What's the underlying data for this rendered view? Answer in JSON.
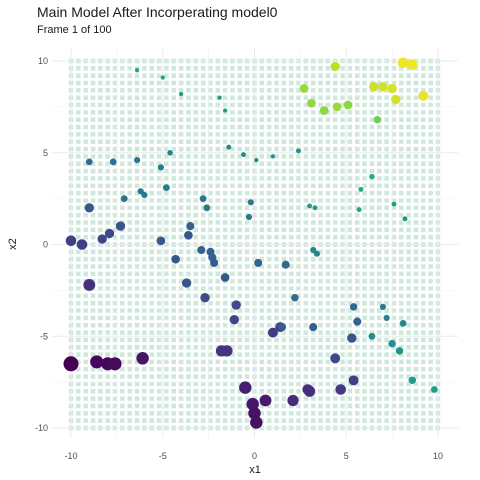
{
  "chart_data": {
    "type": "scatter",
    "title": "Main Model After Incorperating model0",
    "subtitle": "Frame 1 of 100",
    "xlabel": "x1",
    "ylabel": "x2",
    "xlim": [
      -10,
      10
    ],
    "ylim": [
      -10,
      10
    ],
    "x_ticks": [
      "-10",
      "-5",
      "0",
      "5",
      "10"
    ],
    "y_ticks": [
      "-10",
      "-5",
      "0",
      "5",
      "10"
    ],
    "grid": true,
    "background_tiles": {
      "type": "heatmap",
      "color": "#cfe8dc",
      "step": 0.4
    },
    "color_scale": "viridis",
    "points": [
      {
        "x": -10.0,
        "y": -6.5,
        "size": 1.0,
        "c": 0.0
      },
      {
        "x": -8.6,
        "y": -6.4,
        "size": 0.85,
        "c": 0.02
      },
      {
        "x": -8.0,
        "y": -6.5,
        "size": 0.85,
        "c": 0.02
      },
      {
        "x": -7.6,
        "y": -6.5,
        "size": 0.85,
        "c": 0.03
      },
      {
        "x": -6.1,
        "y": -6.2,
        "size": 0.8,
        "c": 0.06
      },
      {
        "x": -9.0,
        "y": -2.2,
        "size": 0.75,
        "c": 0.14
      },
      {
        "x": -10.0,
        "y": 0.2,
        "size": 0.65,
        "c": 0.19
      },
      {
        "x": -9.4,
        "y": 0.0,
        "size": 0.65,
        "c": 0.19
      },
      {
        "x": -8.3,
        "y": 0.3,
        "size": 0.55,
        "c": 0.21
      },
      {
        "x": -7.9,
        "y": 0.6,
        "size": 0.55,
        "c": 0.22
      },
      {
        "x": -7.3,
        "y": 1.0,
        "size": 0.55,
        "c": 0.25
      },
      {
        "x": -9.0,
        "y": 2.0,
        "size": 0.55,
        "c": 0.27
      },
      {
        "x": -9.0,
        "y": 4.5,
        "size": 0.35,
        "c": 0.35
      },
      {
        "x": -7.7,
        "y": 4.5,
        "size": 0.35,
        "c": 0.36
      },
      {
        "x": -7.1,
        "y": 2.5,
        "size": 0.35,
        "c": 0.38
      },
      {
        "x": -6.2,
        "y": 2.9,
        "size": 0.3,
        "c": 0.4
      },
      {
        "x": -6.0,
        "y": 2.7,
        "size": 0.3,
        "c": 0.41
      },
      {
        "x": -6.4,
        "y": 4.6,
        "size": 0.3,
        "c": 0.4
      },
      {
        "x": -5.1,
        "y": 4.2,
        "size": 0.3,
        "c": 0.42
      },
      {
        "x": -4.8,
        "y": 3.1,
        "size": 0.35,
        "c": 0.42
      },
      {
        "x": -4.6,
        "y": 5.0,
        "size": 0.25,
        "c": 0.45
      },
      {
        "x": -4.0,
        "y": 8.2,
        "size": 0.15,
        "c": 0.55
      },
      {
        "x": -5.0,
        "y": 9.1,
        "size": 0.15,
        "c": 0.58
      },
      {
        "x": -6.4,
        "y": 9.5,
        "size": 0.15,
        "c": 0.58
      },
      {
        "x": -2.8,
        "y": 2.5,
        "size": 0.35,
        "c": 0.4
      },
      {
        "x": -2.6,
        "y": 2.0,
        "size": 0.35,
        "c": 0.41
      },
      {
        "x": -1.4,
        "y": 5.3,
        "size": 0.2,
        "c": 0.47
      },
      {
        "x": -0.6,
        "y": 4.9,
        "size": 0.2,
        "c": 0.48
      },
      {
        "x": -1.9,
        "y": 8.0,
        "size": 0.15,
        "c": 0.55
      },
      {
        "x": -1.6,
        "y": 7.3,
        "size": 0.15,
        "c": 0.56
      },
      {
        "x": -0.2,
        "y": 2.3,
        "size": 0.3,
        "c": 0.4
      },
      {
        "x": -0.3,
        "y": 1.5,
        "size": 0.3,
        "c": 0.39
      },
      {
        "x": 1.0,
        "y": 4.8,
        "size": 0.15,
        "c": 0.48
      },
      {
        "x": 0.1,
        "y": 4.6,
        "size": 0.15,
        "c": 0.48
      },
      {
        "x": 2.4,
        "y": 5.1,
        "size": 0.2,
        "c": 0.5
      },
      {
        "x": 2.7,
        "y": 8.5,
        "size": 0.5,
        "c": 0.85
      },
      {
        "x": 3.1,
        "y": 7.7,
        "size": 0.5,
        "c": 0.84
      },
      {
        "x": 4.4,
        "y": 9.7,
        "size": 0.55,
        "c": 0.9
      },
      {
        "x": 3.8,
        "y": 7.3,
        "size": 0.5,
        "c": 0.83
      },
      {
        "x": 4.5,
        "y": 7.5,
        "size": 0.5,
        "c": 0.85
      },
      {
        "x": 5.1,
        "y": 7.6,
        "size": 0.5,
        "c": 0.83
      },
      {
        "x": 6.5,
        "y": 8.6,
        "size": 0.55,
        "c": 0.92
      },
      {
        "x": 7.0,
        "y": 8.6,
        "size": 0.55,
        "c": 0.93
      },
      {
        "x": 7.5,
        "y": 8.5,
        "size": 0.55,
        "c": 0.94
      },
      {
        "x": 7.7,
        "y": 7.9,
        "size": 0.55,
        "c": 0.93
      },
      {
        "x": 8.1,
        "y": 9.9,
        "size": 0.65,
        "c": 0.98
      },
      {
        "x": 8.6,
        "y": 9.8,
        "size": 0.65,
        "c": 0.98
      },
      {
        "x": 9.2,
        "y": 8.1,
        "size": 0.6,
        "c": 0.97
      },
      {
        "x": 6.7,
        "y": 6.8,
        "size": 0.4,
        "c": 0.78
      },
      {
        "x": 6.4,
        "y": 3.7,
        "size": 0.25,
        "c": 0.62
      },
      {
        "x": 3.0,
        "y": 2.1,
        "size": 0.2,
        "c": 0.55
      },
      {
        "x": 3.3,
        "y": 2.0,
        "size": 0.2,
        "c": 0.55
      },
      {
        "x": 5.8,
        "y": 3.0,
        "size": 0.2,
        "c": 0.6
      },
      {
        "x": 5.7,
        "y": 1.9,
        "size": 0.2,
        "c": 0.58
      },
      {
        "x": 7.6,
        "y": 2.2,
        "size": 0.2,
        "c": 0.56
      },
      {
        "x": 8.2,
        "y": 1.4,
        "size": 0.2,
        "c": 0.52
      },
      {
        "x": 3.2,
        "y": -0.3,
        "size": 0.3,
        "c": 0.47
      },
      {
        "x": 3.4,
        "y": -0.5,
        "size": 0.3,
        "c": 0.46
      },
      {
        "x": -10.0,
        "y": 0.2,
        "size": 0.6,
        "c": 0.19
      },
      {
        "x": -5.1,
        "y": 0.2,
        "size": 0.5,
        "c": 0.28
      },
      {
        "x": -4.3,
        "y": -0.8,
        "size": 0.5,
        "c": 0.27
      },
      {
        "x": -3.7,
        "y": -2.1,
        "size": 0.55,
        "c": 0.25
      },
      {
        "x": -2.9,
        "y": -0.3,
        "size": 0.45,
        "c": 0.3
      },
      {
        "x": -2.4,
        "y": -0.4,
        "size": 0.45,
        "c": 0.3
      },
      {
        "x": -2.3,
        "y": -0.7,
        "size": 0.45,
        "c": 0.3
      },
      {
        "x": -2.2,
        "y": -1.0,
        "size": 0.45,
        "c": 0.29
      },
      {
        "x": -1.6,
        "y": -1.8,
        "size": 0.5,
        "c": 0.27
      },
      {
        "x": -2.7,
        "y": -2.9,
        "size": 0.55,
        "c": 0.23
      },
      {
        "x": -1.0,
        "y": -3.3,
        "size": 0.55,
        "c": 0.22
      },
      {
        "x": -1.1,
        "y": -4.1,
        "size": 0.55,
        "c": 0.2
      },
      {
        "x": -3.6,
        "y": 0.5,
        "size": 0.5,
        "c": 0.27
      },
      {
        "x": -3.5,
        "y": 1.0,
        "size": 0.45,
        "c": 0.3
      },
      {
        "x": -1.8,
        "y": -5.8,
        "size": 0.7,
        "c": 0.15
      },
      {
        "x": -1.5,
        "y": -5.8,
        "size": 0.7,
        "c": 0.15
      },
      {
        "x": 1.0,
        "y": -4.8,
        "size": 0.6,
        "c": 0.18
      },
      {
        "x": 1.4,
        "y": -4.5,
        "size": 0.6,
        "c": 0.19
      },
      {
        "x": 0.2,
        "y": -1.0,
        "size": 0.45,
        "c": 0.33
      },
      {
        "x": 1.7,
        "y": -1.1,
        "size": 0.45,
        "c": 0.34
      },
      {
        "x": -0.5,
        "y": -7.8,
        "size": 0.8,
        "c": 0.08
      },
      {
        "x": -0.1,
        "y": -8.7,
        "size": 0.8,
        "c": 0.06
      },
      {
        "x": 0.0,
        "y": -9.2,
        "size": 0.8,
        "c": 0.05
      },
      {
        "x": 0.1,
        "y": -9.7,
        "size": 0.8,
        "c": 0.05
      },
      {
        "x": 0.6,
        "y": -8.5,
        "size": 0.75,
        "c": 0.07
      },
      {
        "x": 2.1,
        "y": -8.5,
        "size": 0.7,
        "c": 0.12
      },
      {
        "x": 3.0,
        "y": -8.0,
        "size": 0.7,
        "c": 0.14
      },
      {
        "x": 4.7,
        "y": -7.9,
        "size": 0.65,
        "c": 0.17
      },
      {
        "x": 5.4,
        "y": -7.4,
        "size": 0.6,
        "c": 0.19
      },
      {
        "x": 4.4,
        "y": -6.2,
        "size": 0.6,
        "c": 0.22
      },
      {
        "x": 5.3,
        "y": -5.1,
        "size": 0.55,
        "c": 0.26
      },
      {
        "x": 5.6,
        "y": -4.2,
        "size": 0.45,
        "c": 0.31
      },
      {
        "x": 5.4,
        "y": -3.4,
        "size": 0.4,
        "c": 0.34
      },
      {
        "x": 3.2,
        "y": -4.5,
        "size": 0.45,
        "c": 0.3
      },
      {
        "x": 2.9,
        "y": -7.9,
        "size": 0.65,
        "c": 0.13
      },
      {
        "x": 2.2,
        "y": -2.9,
        "size": 0.4,
        "c": 0.35
      },
      {
        "x": 1.5,
        "y": -4.5,
        "size": 0.45,
        "c": 0.29
      },
      {
        "x": 7.0,
        "y": -3.4,
        "size": 0.3,
        "c": 0.42
      },
      {
        "x": 7.2,
        "y": -4.0,
        "size": 0.3,
        "c": 0.44
      },
      {
        "x": 8.1,
        "y": -4.3,
        "size": 0.35,
        "c": 0.46
      },
      {
        "x": 7.5,
        "y": -5.4,
        "size": 0.4,
        "c": 0.5
      },
      {
        "x": 7.9,
        "y": -5.8,
        "size": 0.4,
        "c": 0.52
      },
      {
        "x": 8.6,
        "y": -7.4,
        "size": 0.4,
        "c": 0.54
      },
      {
        "x": 9.8,
        "y": -7.9,
        "size": 0.35,
        "c": 0.56
      },
      {
        "x": 6.4,
        "y": -5.0,
        "size": 0.35,
        "c": 0.48
      }
    ]
  }
}
